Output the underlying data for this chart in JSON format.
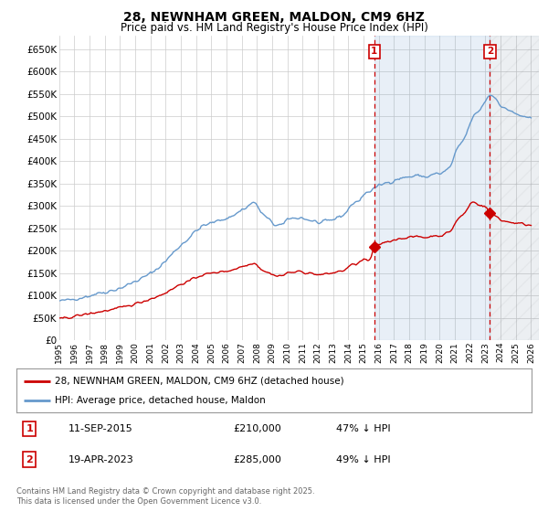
{
  "title": "28, NEWNHAM GREEN, MALDON, CM9 6HZ",
  "subtitle": "Price paid vs. HM Land Registry's House Price Index (HPI)",
  "ylim": [
    0,
    680000
  ],
  "yticks": [
    0,
    50000,
    100000,
    150000,
    200000,
    250000,
    300000,
    350000,
    400000,
    450000,
    500000,
    550000,
    600000,
    650000
  ],
  "ytick_labels": [
    "£0",
    "£50K",
    "£100K",
    "£150K",
    "£200K",
    "£250K",
    "£300K",
    "£350K",
    "£400K",
    "£450K",
    "£500K",
    "£550K",
    "£600K",
    "£650K"
  ],
  "xlim_start": 1995.0,
  "xlim_end": 2026.5,
  "background_color": "#ffffff",
  "plot_bg_color": "#ffffff",
  "grid_color": "#cccccc",
  "red_color": "#cc0000",
  "blue_color": "#6699cc",
  "shade_color": "#ddeeff",
  "marker1_date": "11-SEP-2015",
  "marker1_price": 210000,
  "marker1_hpi_pct": "47% ↓ HPI",
  "marker2_date": "19-APR-2023",
  "marker2_price": 285000,
  "marker2_hpi_pct": "49% ↓ HPI",
  "legend_label_red": "28, NEWNHAM GREEN, MALDON, CM9 6HZ (detached house)",
  "legend_label_blue": "HPI: Average price, detached house, Maldon",
  "footer": "Contains HM Land Registry data © Crown copyright and database right 2025.\nThis data is licensed under the Open Government Licence v3.0.",
  "marker1_x": 2015.7,
  "marker1_y": 210000,
  "marker2_x": 2023.3,
  "marker2_y": 285000
}
